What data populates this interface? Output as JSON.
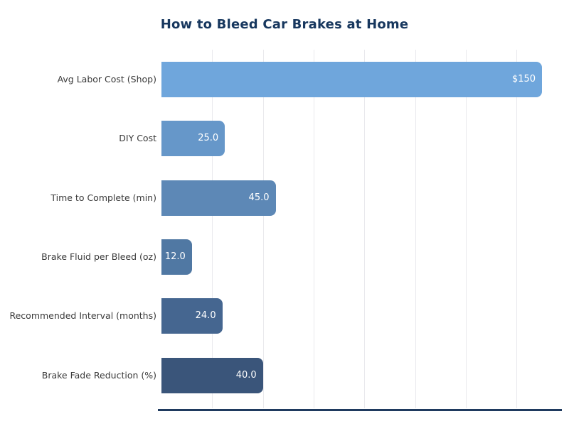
{
  "title": "How to Bleed Car Brakes at Home",
  "colors": {
    "title_text": "#17375e",
    "axis_line": "#1f3a5f",
    "gridline": "#e9e9ed",
    "category_text": "#3a3a3a",
    "value_text": "#ffffff",
    "background": "#ffffff"
  },
  "chart_data": {
    "type": "bar",
    "orientation": "horizontal",
    "title": "How to Bleed Car Brakes at Home",
    "categories": [
      "Avg Labor Cost (Shop)",
      "DIY Cost",
      "Time to Complete (min)",
      "Brake Fluid per Bleed (oz)",
      "Recommended Interval (months)",
      "Brake Fade Reduction (%)"
    ],
    "values": [
      150,
      25,
      45,
      12,
      24,
      40
    ],
    "value_labels": [
      "$150",
      "25.0",
      "45.0",
      "12.0",
      "24.0",
      "40.0"
    ],
    "bar_colors": [
      "#6fa6dc",
      "#6697c9",
      "#5d88b6",
      "#5078a3",
      "#456690",
      "#3a557a"
    ],
    "xlabel": "",
    "ylabel": "",
    "xlim": [
      0,
      157.5
    ],
    "gridlines_x": [
      20,
      40,
      60,
      80,
      100,
      120,
      140
    ],
    "grid": "vertical-only",
    "legend": "none"
  }
}
